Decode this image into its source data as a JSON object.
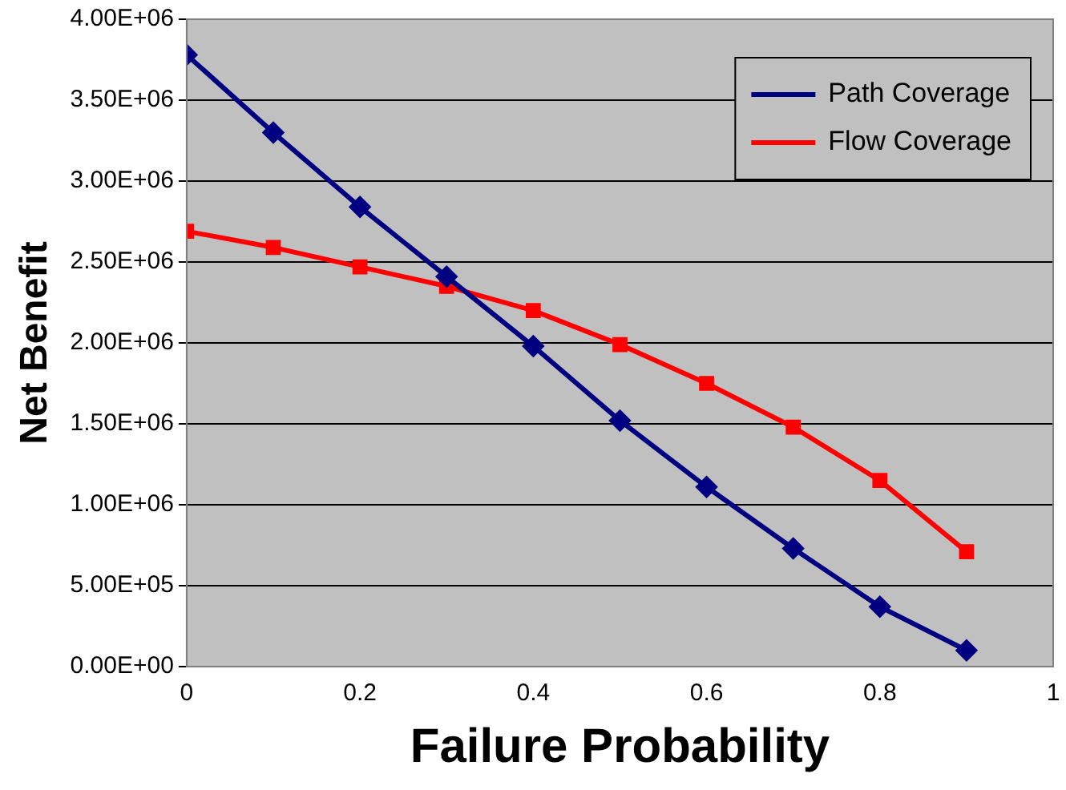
{
  "chart_data": {
    "type": "line",
    "xlabel": "Failure Probability",
    "ylabel": "Net Benefit",
    "x": [
      0,
      0.1,
      0.2,
      0.3,
      0.4,
      0.5,
      0.6,
      0.7,
      0.8,
      0.9
    ],
    "series": [
      {
        "name": "Path Coverage",
        "color": "#000080",
        "marker": "diamond",
        "values": [
          3780000,
          3300000,
          2840000,
          2410000,
          1980000,
          1520000,
          1110000,
          730000,
          370000,
          100000
        ]
      },
      {
        "name": "Flow Coverage",
        "color": "#ff0000",
        "marker": "square",
        "values": [
          2690000,
          2590000,
          2470000,
          2350000,
          2200000,
          1990000,
          1750000,
          1480000,
          1150000,
          710000
        ]
      }
    ],
    "xlim": [
      0,
      1
    ],
    "xticks": [
      0,
      0.2,
      0.4,
      0.6,
      0.8,
      1
    ],
    "ylim": [
      0,
      4000000
    ],
    "yticks": [
      {
        "value": 0,
        "label": "0.00E+00"
      },
      {
        "value": 500000,
        "label": "5.00E+05"
      },
      {
        "value": 1000000,
        "label": "1.00E+06"
      },
      {
        "value": 1500000,
        "label": "1.50E+06"
      },
      {
        "value": 2000000,
        "label": "2.00E+06"
      },
      {
        "value": 2500000,
        "label": "2.50E+06"
      },
      {
        "value": 3000000,
        "label": "3.00E+06"
      },
      {
        "value": 3500000,
        "label": "3.50E+06"
      },
      {
        "value": 4000000,
        "label": "4.00E+06"
      }
    ],
    "grid": "y",
    "legend": "top right",
    "line_style": "solid"
  }
}
